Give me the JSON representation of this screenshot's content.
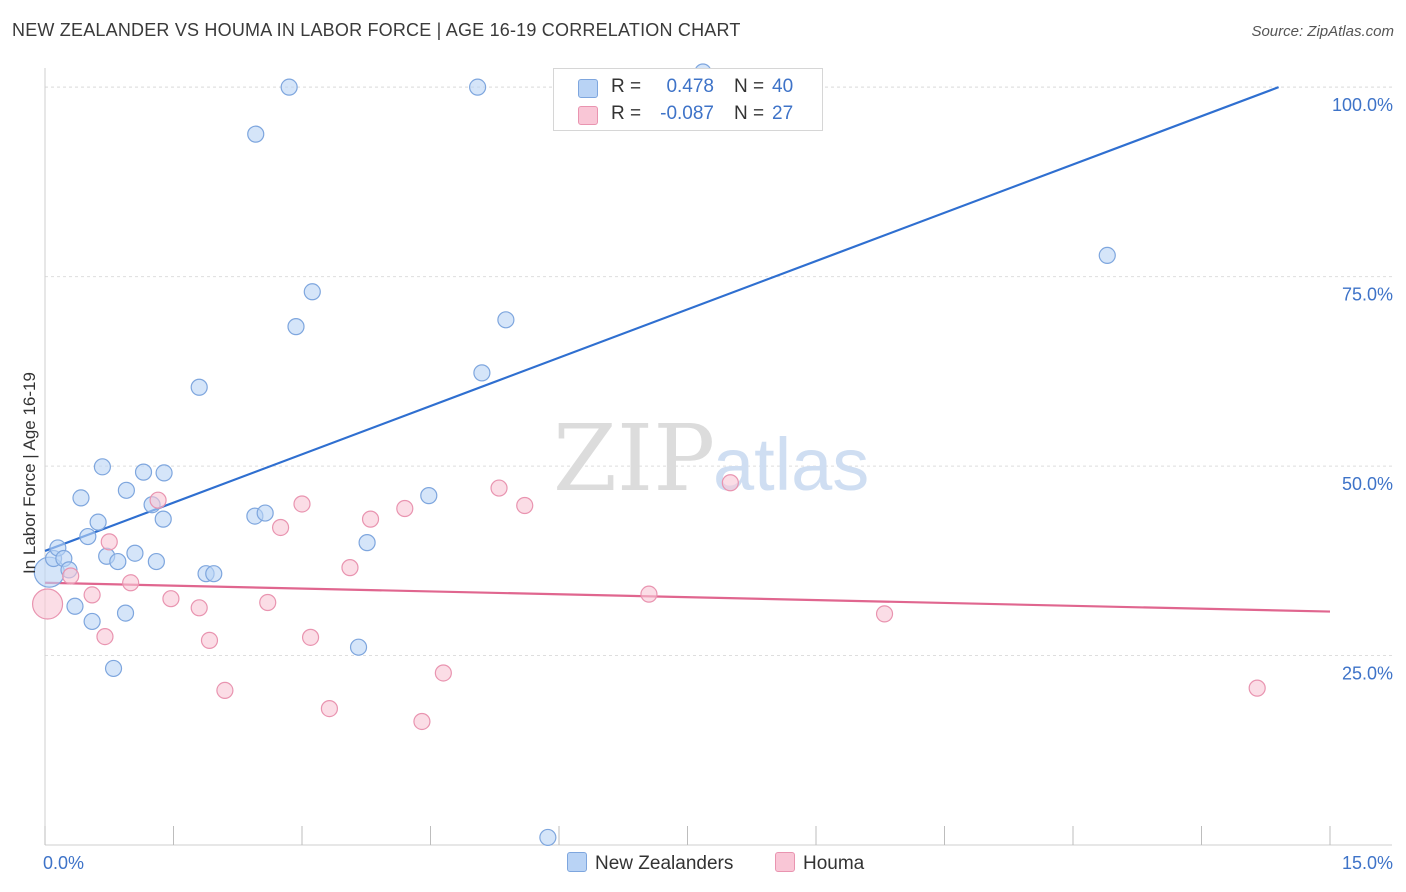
{
  "header": {
    "title": "NEW ZEALANDER VS HOUMA IN LABOR FORCE | AGE 16-19 CORRELATION CHART",
    "source": "Source: ZipAtlas.com"
  },
  "watermark": {
    "zip": "ZIP",
    "atlas": "atlas"
  },
  "legend_top": [
    {
      "r_label": "R =",
      "r_value": "0.478",
      "n_label": "N =",
      "n_value": "40",
      "color": "#b9d3f5",
      "border": "#7ea6de"
    },
    {
      "r_label": "R =",
      "r_value": "-0.087",
      "n_label": "N =",
      "n_value": "27",
      "color": "#f9c6d6",
      "border": "#e994b0"
    }
  ],
  "legend_bottom": [
    {
      "label": "New Zealanders",
      "color": "#b9d3f5",
      "border": "#7ea6de"
    },
    {
      "label": "Houma",
      "color": "#f9c6d6",
      "border": "#e994b0"
    }
  ],
  "chart_data": {
    "type": "scatter",
    "ylabel": "In Labor Force | Age 16-19",
    "xlim": [
      0,
      15
    ],
    "ylim": [
      0,
      102
    ],
    "x_tick_labels": {
      "left": "0.0%",
      "right": "15.0%"
    },
    "y_ticks": [
      {
        "value": 25,
        "label": "25.0%"
      },
      {
        "value": 50,
        "label": "50.0%"
      },
      {
        "value": 75,
        "label": "75.0%"
      },
      {
        "value": 100,
        "label": "100.0%"
      }
    ],
    "grid": true,
    "series": [
      {
        "name": "New Zealanders",
        "color": "#b9d3f5",
        "stroke": "#7ea6de",
        "line_color": "#2f6fd0",
        "trend": {
          "x": [
            0,
            14.4
          ],
          "y": [
            38.8,
            100
          ]
        },
        "points": [
          {
            "x": 0.05,
            "y": 36.0,
            "big": true
          },
          {
            "x": 0.1,
            "y": 37.8
          },
          {
            "x": 0.15,
            "y": 39.2
          },
          {
            "x": 0.22,
            "y": 37.8
          },
          {
            "x": 0.28,
            "y": 36.3
          },
          {
            "x": 0.35,
            "y": 31.5
          },
          {
            "x": 0.42,
            "y": 45.8
          },
          {
            "x": 0.5,
            "y": 40.7
          },
          {
            "x": 0.55,
            "y": 29.5
          },
          {
            "x": 0.62,
            "y": 42.6
          },
          {
            "x": 0.67,
            "y": 49.9
          },
          {
            "x": 0.72,
            "y": 38.1
          },
          {
            "x": 0.8,
            "y": 23.3
          },
          {
            "x": 0.85,
            "y": 37.4
          },
          {
            "x": 0.94,
            "y": 30.6
          },
          {
            "x": 0.95,
            "y": 46.8
          },
          {
            "x": 1.05,
            "y": 38.5
          },
          {
            "x": 1.15,
            "y": 49.2
          },
          {
            "x": 1.25,
            "y": 44.9
          },
          {
            "x": 1.3,
            "y": 37.4
          },
          {
            "x": 1.38,
            "y": 43.0
          },
          {
            "x": 1.39,
            "y": 49.1
          },
          {
            "x": 1.8,
            "y": 60.4
          },
          {
            "x": 1.88,
            "y": 35.8
          },
          {
            "x": 1.97,
            "y": 35.8
          },
          {
            "x": 2.45,
            "y": 43.4
          },
          {
            "x": 2.46,
            "y": 93.8
          },
          {
            "x": 2.57,
            "y": 43.8
          },
          {
            "x": 2.85,
            "y": 100.0
          },
          {
            "x": 2.93,
            "y": 68.4
          },
          {
            "x": 3.12,
            "y": 73.0
          },
          {
            "x": 3.66,
            "y": 26.1
          },
          {
            "x": 3.76,
            "y": 39.9
          },
          {
            "x": 4.48,
            "y": 46.1
          },
          {
            "x": 5.05,
            "y": 100.0
          },
          {
            "x": 5.1,
            "y": 62.3
          },
          {
            "x": 5.38,
            "y": 69.3
          },
          {
            "x": 5.87,
            "y": 1.0
          },
          {
            "x": 7.68,
            "y": 102.0
          },
          {
            "x": 12.4,
            "y": 77.8
          }
        ]
      },
      {
        "name": "Houma",
        "color": "#f9c6d6",
        "stroke": "#e994b0",
        "line_color": "#e0668f",
        "trend": {
          "x": [
            0,
            15
          ],
          "y": [
            34.6,
            30.8
          ]
        },
        "points": [
          {
            "x": 0.03,
            "y": 31.8,
            "big": true
          },
          {
            "x": 0.3,
            "y": 35.5
          },
          {
            "x": 0.55,
            "y": 33.0
          },
          {
            "x": 0.7,
            "y": 27.5
          },
          {
            "x": 0.75,
            "y": 40.0
          },
          {
            "x": 1.0,
            "y": 34.6
          },
          {
            "x": 1.32,
            "y": 45.5
          },
          {
            "x": 1.47,
            "y": 32.5
          },
          {
            "x": 1.8,
            "y": 31.3
          },
          {
            "x": 1.92,
            "y": 27.0
          },
          {
            "x": 2.1,
            "y": 20.4
          },
          {
            "x": 2.6,
            "y": 32.0
          },
          {
            "x": 2.75,
            "y": 41.9
          },
          {
            "x": 3.0,
            "y": 45.0
          },
          {
            "x": 3.1,
            "y": 27.4
          },
          {
            "x": 3.32,
            "y": 18.0
          },
          {
            "x": 3.56,
            "y": 36.6
          },
          {
            "x": 3.8,
            "y": 43.0
          },
          {
            "x": 4.2,
            "y": 44.4
          },
          {
            "x": 4.4,
            "y": 16.3
          },
          {
            "x": 4.65,
            "y": 22.7
          },
          {
            "x": 5.3,
            "y": 47.1
          },
          {
            "x": 5.6,
            "y": 44.8
          },
          {
            "x": 7.05,
            "y": 33.1
          },
          {
            "x": 8.0,
            "y": 47.8
          },
          {
            "x": 9.8,
            "y": 30.5
          },
          {
            "x": 14.15,
            "y": 20.7
          }
        ]
      }
    ]
  }
}
